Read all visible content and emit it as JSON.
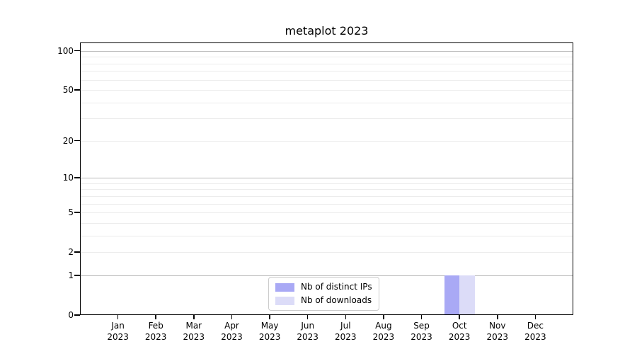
{
  "chart_data": {
    "type": "bar",
    "title": "metaplot 2023",
    "xlabel": "",
    "ylabel": "",
    "categories": [
      "Jan 2023",
      "Feb 2023",
      "Mar 2023",
      "Apr 2023",
      "May 2023",
      "Jun 2023",
      "Jul 2023",
      "Aug 2023",
      "Sep 2023",
      "Oct 2023",
      "Nov 2023",
      "Dec 2023"
    ],
    "series": [
      {
        "name": "Nb of distinct IPs",
        "color": "#a9a9f5",
        "values": [
          0,
          0,
          0,
          0,
          0,
          0,
          0,
          0,
          0,
          1,
          0,
          0
        ]
      },
      {
        "name": "Nb of downloads",
        "color": "#dcdcf8",
        "values": [
          0,
          0,
          0,
          0,
          0,
          0,
          0,
          0,
          0,
          1,
          0,
          0
        ]
      }
    ],
    "y_axis": {
      "scale": "log1p",
      "tick_values": [
        0,
        1,
        2,
        5,
        10,
        20,
        50,
        100
      ],
      "ylim": [
        0,
        116
      ]
    },
    "grid": {
      "major_values": [
        1,
        10,
        100
      ],
      "minor_values": [
        2,
        3,
        4,
        5,
        6,
        7,
        8,
        9,
        20,
        30,
        40,
        50,
        60,
        70,
        80,
        90
      ],
      "major_color": "#b9b9b9",
      "minor_color": "#ececec"
    },
    "bar_group_width_ratio": 0.8,
    "legend_position": "bottom-center"
  },
  "colors": {
    "background": "#ffffff",
    "spine": "#000000",
    "text": "#000000",
    "legend_border": "#cccccc"
  }
}
